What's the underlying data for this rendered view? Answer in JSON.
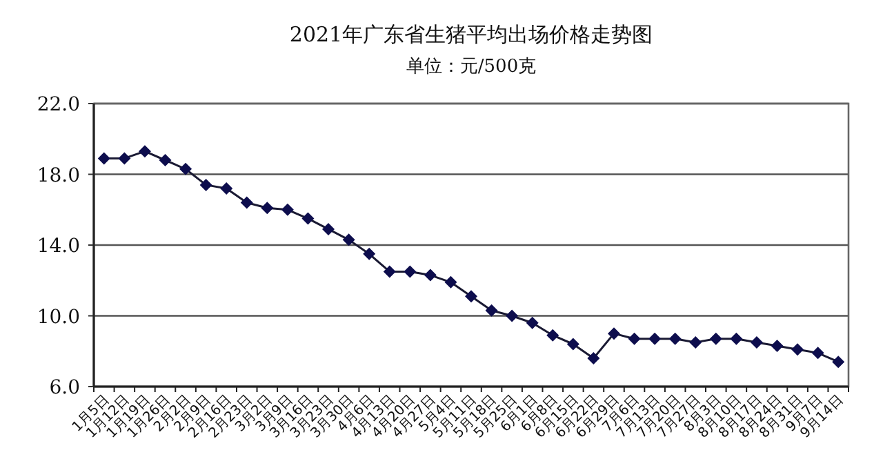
{
  "chart_data": {
    "type": "line",
    "title": "2021年广东省生猪平均出场价格走势图",
    "subtitle": "单位：元/500克",
    "categories": [
      "1月5日",
      "1月12日",
      "1月19日",
      "1月26日",
      "2月2日",
      "2月9日",
      "2月16日",
      "2月23日",
      "3月2日",
      "3月9日",
      "3月16日",
      "3月23日",
      "3月30日",
      "4月6日",
      "4月13日",
      "4月20日",
      "4月27日",
      "5月4日",
      "5月11日",
      "5月18日",
      "5月25日",
      "6月1日",
      "6月8日",
      "6月15日",
      "6月22日",
      "6月29日",
      "7月6日",
      "7月13日",
      "7月20日",
      "7月27日",
      "8月3日",
      "8月10日",
      "8月17日",
      "8月24日",
      "8月31日",
      "9月7日",
      "9月14日"
    ],
    "series": [
      {
        "color": "#0d0d4d",
        "values": [
          18.9,
          18.9,
          19.3,
          18.8,
          18.3,
          17.4,
          17.2,
          16.4,
          16.1,
          16.0,
          15.5,
          14.9,
          14.3,
          13.5,
          12.5,
          12.5,
          12.3,
          11.9,
          11.1,
          10.3,
          10.0,
          9.6,
          8.9,
          8.4,
          7.6,
          9.0,
          8.7,
          8.7,
          8.7,
          8.5,
          8.7,
          8.7,
          8.5,
          8.3,
          8.1,
          7.9,
          7.4
        ]
      }
    ],
    "ylim": [
      6,
      22
    ],
    "yticks": [
      {
        "value": 6,
        "label": "6.0"
      },
      {
        "value": 10,
        "label": "10.0"
      },
      {
        "value": 14,
        "label": "14.0"
      },
      {
        "value": 18,
        "label": "18.0"
      },
      {
        "value": 22,
        "label": "22.0"
      }
    ],
    "grid": "y",
    "marker": "diamond",
    "line_style": "solid"
  }
}
